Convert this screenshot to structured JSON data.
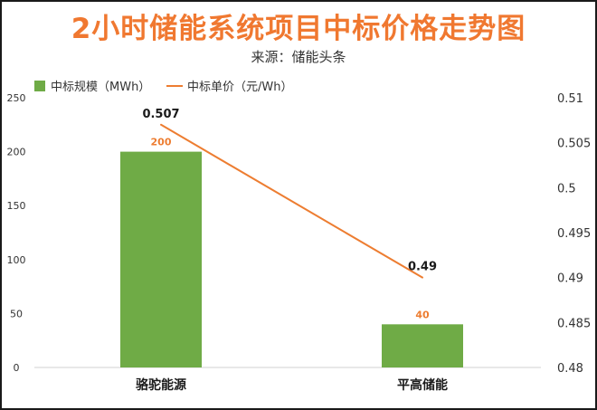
{
  "colors": {
    "title": "#f07830",
    "bar": "#6fab46",
    "line": "#ed7d31",
    "text": "#333333"
  },
  "chart_data": {
    "type": "bar",
    "title": "2小时储能系统项目中标价格走势图",
    "subtitle": "来源：储能头条",
    "categories": [
      "骆驼能源",
      "平高储能"
    ],
    "series": [
      {
        "name": "中标规模（MWh）",
        "type": "bar",
        "axis": "left",
        "values": [
          200,
          40
        ],
        "labels": [
          "200",
          "40"
        ]
      },
      {
        "name": "中标单价（元/Wh）",
        "type": "line",
        "axis": "right",
        "values": [
          0.507,
          0.49
        ],
        "labels": [
          "0.507",
          "0.49"
        ]
      }
    ],
    "y_left": {
      "ylim": [
        0,
        250
      ],
      "ticks": [
        "0",
        "50",
        "100",
        "150",
        "200",
        "250"
      ]
    },
    "y_right": {
      "ylim": [
        0.48,
        0.51
      ],
      "ticks": [
        "0.48",
        "0.485",
        "0.49",
        "0.495",
        "0.5",
        "0.505",
        "0.51"
      ]
    },
    "legend_position": "top-left",
    "grid": false
  }
}
